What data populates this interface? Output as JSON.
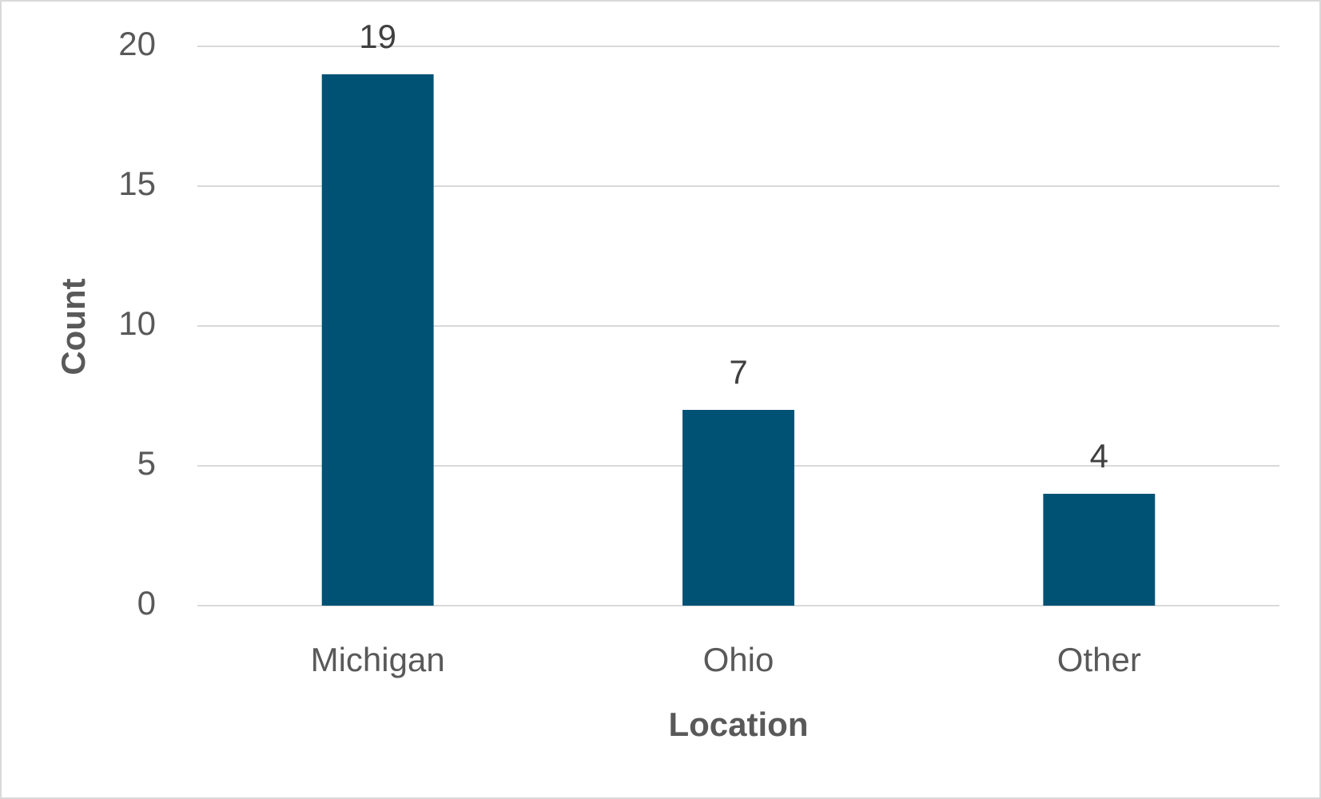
{
  "chart_data": {
    "type": "bar",
    "x_label": "Location",
    "y_label": "Count",
    "categories": [
      "Michigan",
      "Ohio",
      "Other"
    ],
    "values": [
      19,
      7,
      4
    ],
    "color": "#005275",
    "ylim": [
      0,
      20
    ],
    "yticks": [
      0,
      5,
      10,
      15,
      20
    ],
    "grid": true,
    "data_labels": true
  }
}
